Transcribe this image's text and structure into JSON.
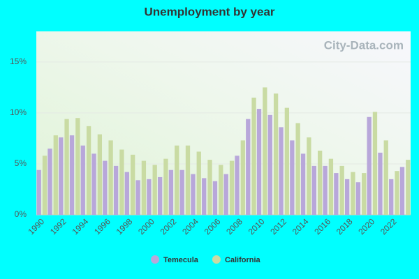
{
  "chart_data": {
    "type": "bar",
    "title": "Unemployment by year",
    "watermark": "City-Data.com",
    "categories": [
      "1990",
      null,
      "1992",
      null,
      "1994",
      null,
      "1996",
      null,
      "1998",
      null,
      "2000",
      null,
      "2002",
      null,
      "2004",
      null,
      "2006",
      null,
      "2008",
      null,
      "2010",
      null,
      "2012",
      null,
      "2014",
      null,
      "2016",
      null,
      "2018",
      null,
      "2020",
      null,
      "2022",
      null
    ],
    "series": [
      {
        "name": "Temecula",
        "color": "#b8a7da",
        "values": [
          4.4,
          6.5,
          7.6,
          7.8,
          6.8,
          6.0,
          5.3,
          4.8,
          4.2,
          3.4,
          3.5,
          3.7,
          4.4,
          4.4,
          4.0,
          3.6,
          3.3,
          4.0,
          5.8,
          9.4,
          10.4,
          9.8,
          8.6,
          7.3,
          6.0,
          4.8,
          4.8,
          4.1,
          3.5,
          3.2,
          9.6,
          6.1,
          3.5,
          4.7
        ]
      },
      {
        "name": "California",
        "color": "#c9dba3",
        "values": [
          5.8,
          7.8,
          9.4,
          9.5,
          8.7,
          7.9,
          7.3,
          6.4,
          5.9,
          5.3,
          4.9,
          5.5,
          6.8,
          6.8,
          6.2,
          5.4,
          4.9,
          5.3,
          7.3,
          11.5,
          12.5,
          11.9,
          10.5,
          9.0,
          7.6,
          6.3,
          5.5,
          4.8,
          4.2,
          4.1,
          10.1,
          7.3,
          4.3,
          5.4
        ]
      }
    ],
    "ylim": [
      0,
      18
    ],
    "yticks": [
      {
        "value": 0,
        "label": "0%"
      },
      {
        "value": 5,
        "label": "5%"
      },
      {
        "value": 10,
        "label": "10%"
      },
      {
        "value": 15,
        "label": "15%"
      }
    ],
    "grid": true,
    "legend": "bottom"
  }
}
